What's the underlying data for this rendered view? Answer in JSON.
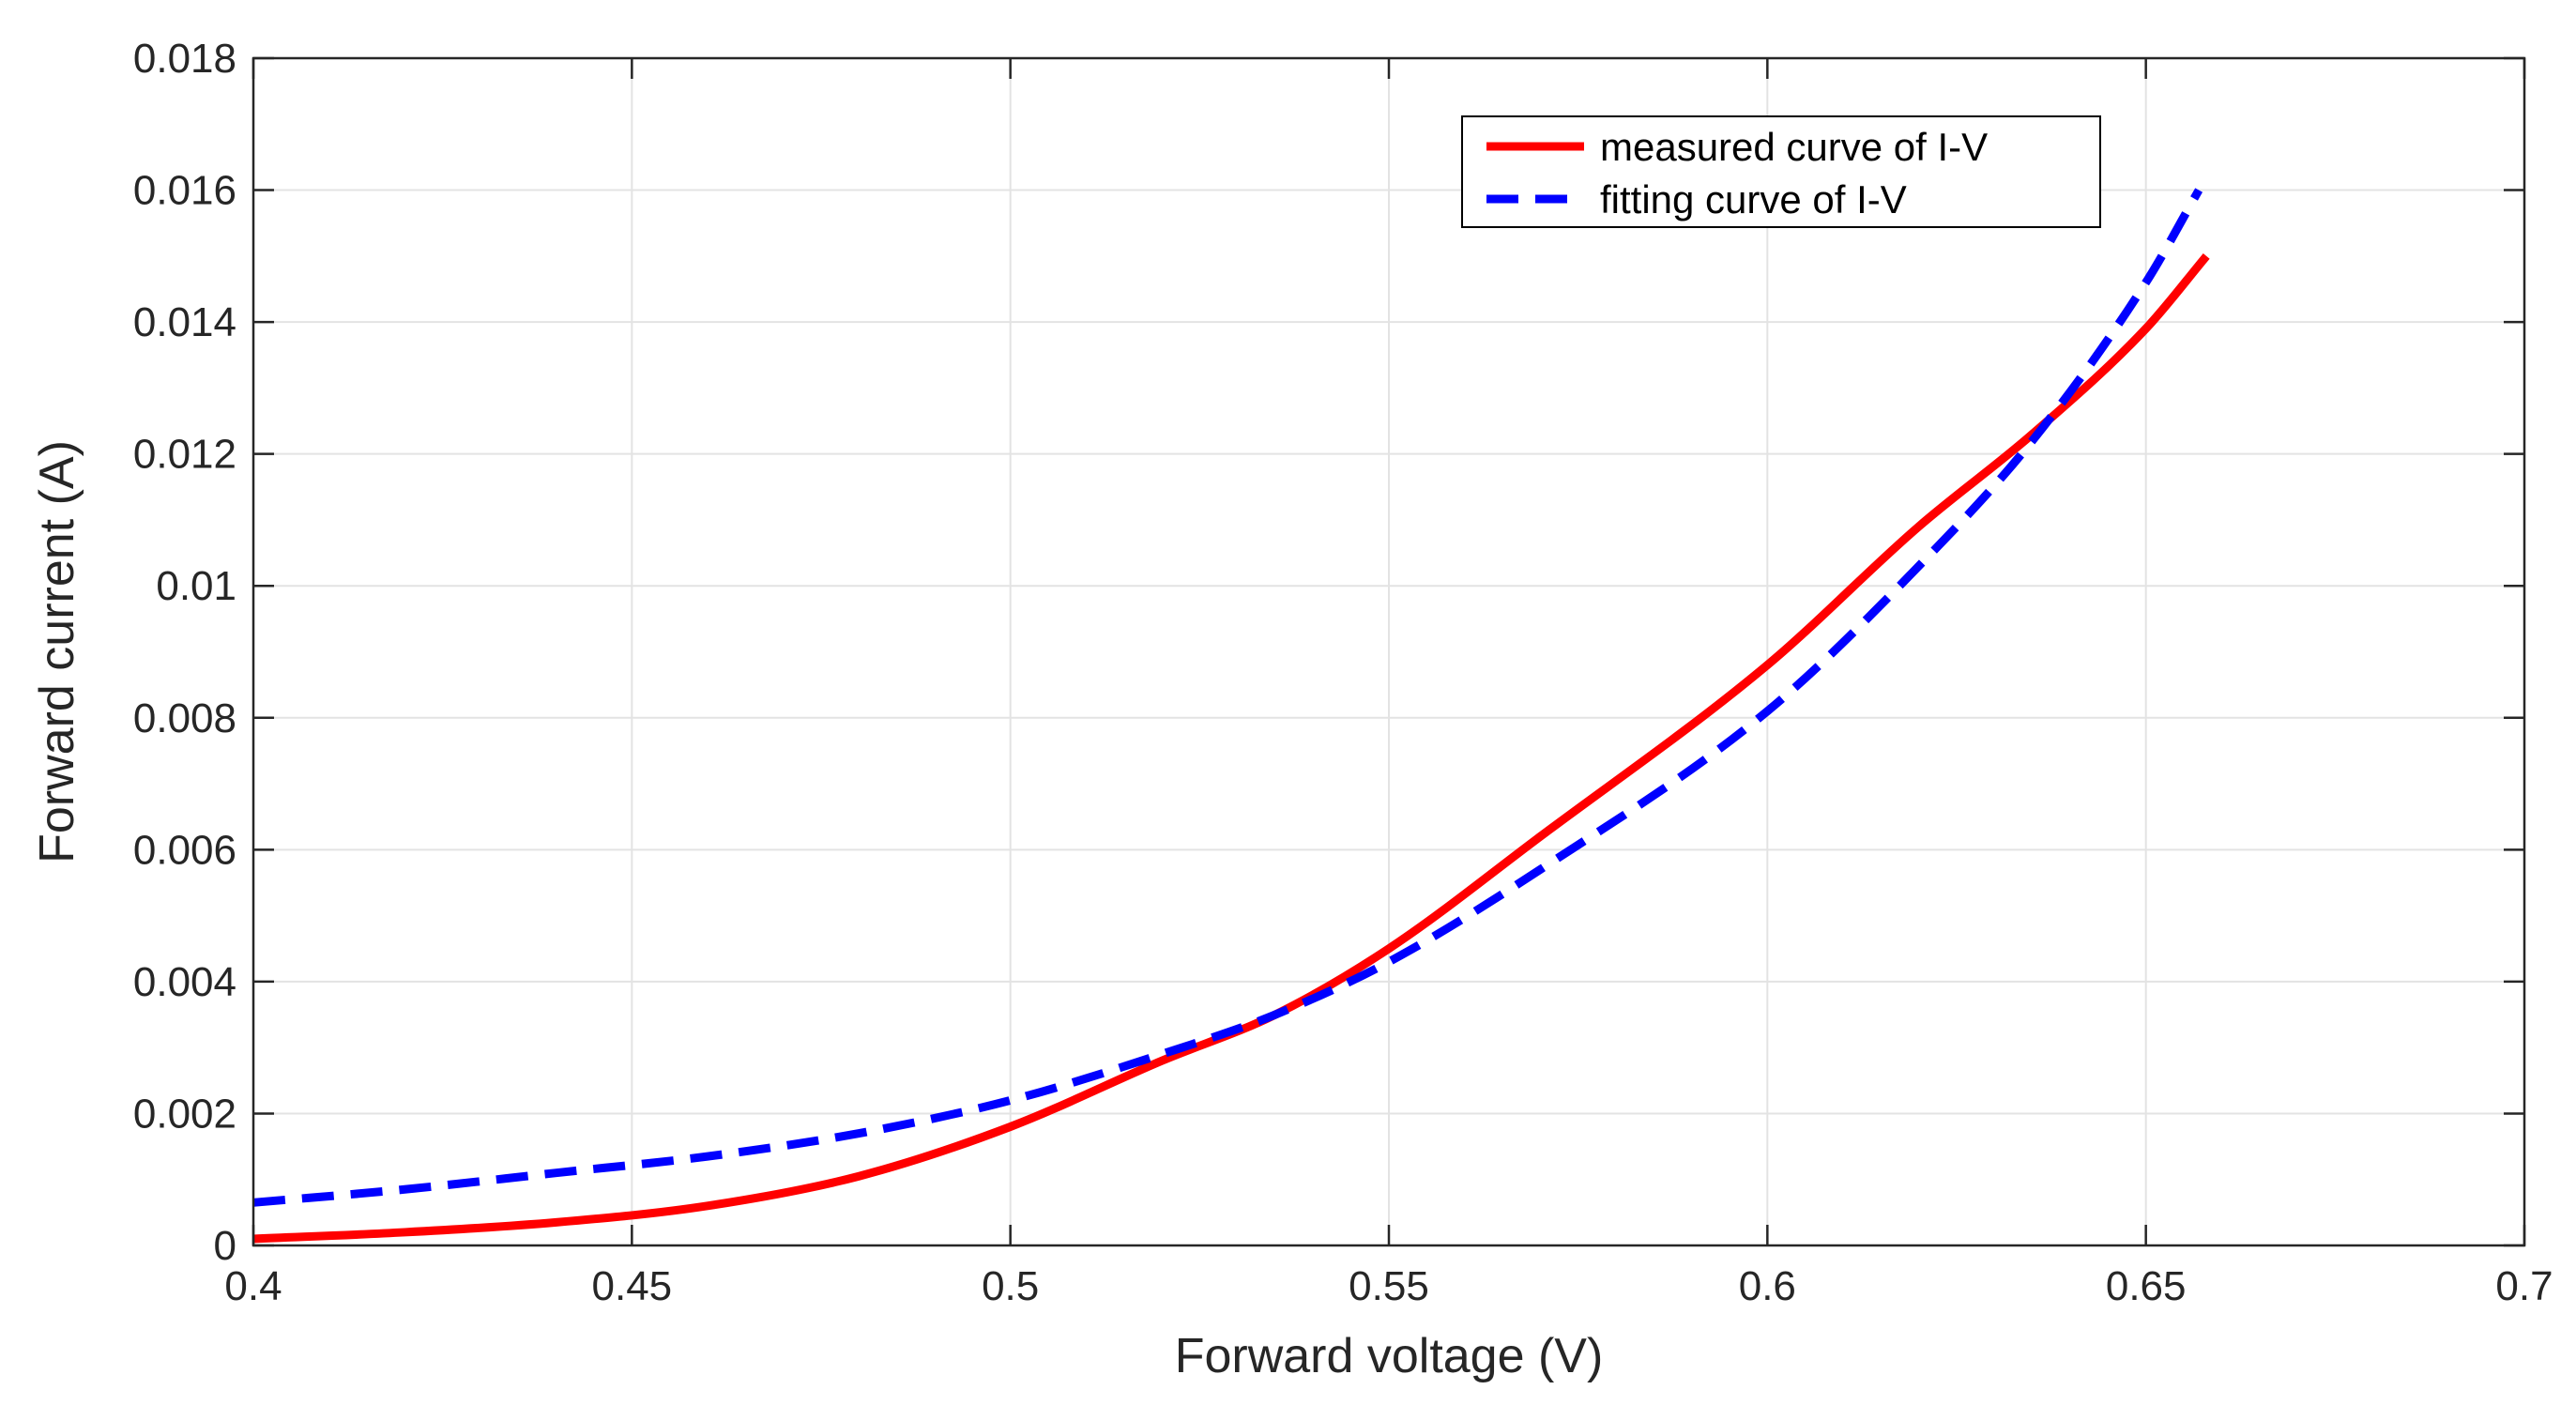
{
  "chart_data": {
    "type": "line",
    "title": "",
    "xlabel": "Forward voltage (V)",
    "ylabel": "Forward current (A)",
    "xlim": [
      0.4,
      0.7
    ],
    "ylim": [
      0,
      0.018
    ],
    "grid": true,
    "x_ticks": [
      0.4,
      0.45,
      0.5,
      0.55,
      0.6,
      0.65,
      0.7
    ],
    "x_tick_labels": [
      "0.4",
      "0.45",
      "0.5",
      "0.55",
      "0.6",
      "0.65",
      "0.7"
    ],
    "y_ticks": [
      0,
      0.002,
      0.004,
      0.006,
      0.008,
      0.01,
      0.012,
      0.014,
      0.016,
      0.018
    ],
    "y_tick_labels": [
      "0",
      "0.002",
      "0.004",
      "0.006",
      "0.008",
      "0.01",
      "0.012",
      "0.014",
      "0.016",
      "0.018"
    ],
    "legend_position": "top-right",
    "series": [
      {
        "name": "measured curve of I-V",
        "color": "#ff0000",
        "style": "solid",
        "x": [
          0.4,
          0.42,
          0.44,
          0.46,
          0.48,
          0.5,
          0.52,
          0.535,
          0.55,
          0.57,
          0.6,
          0.62,
          0.635,
          0.65,
          0.658
        ],
        "y": [
          0.0001,
          0.0002,
          0.00035,
          0.0006,
          0.00105,
          0.0018,
          0.0028,
          0.0035,
          0.0045,
          0.0062,
          0.0088,
          0.0109,
          0.0123,
          0.0139,
          0.015
        ]
      },
      {
        "name": "fitting curve of I-V",
        "color": "#0000ff",
        "style": "dashed",
        "x": [
          0.4,
          0.42,
          0.44,
          0.46,
          0.48,
          0.5,
          0.52,
          0.535,
          0.55,
          0.57,
          0.6,
          0.62,
          0.635,
          0.65,
          0.657
        ],
        "y": [
          0.00065,
          0.00085,
          0.0011,
          0.00135,
          0.0017,
          0.0022,
          0.0029,
          0.0035,
          0.0043,
          0.0057,
          0.0081,
          0.0103,
          0.0122,
          0.0146,
          0.016
        ]
      }
    ]
  }
}
